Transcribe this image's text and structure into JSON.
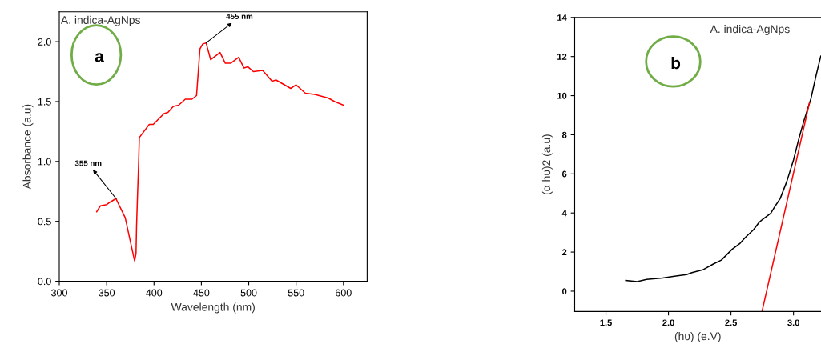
{
  "chart_data": [
    {
      "type": "line",
      "xlabel": "Wavelength (nm)",
      "ylabel": "Absorbance (a.u)",
      "xlim": [
        300,
        625
      ],
      "ylim": [
        0,
        2.25
      ],
      "xticks": [
        300,
        350,
        400,
        450,
        500,
        550,
        600
      ],
      "yticks": [
        {
          "value": 0,
          "label": "0.0"
        },
        0.5,
        {
          "value": 1,
          "label": "1.0"
        },
        1.5,
        {
          "value": 2,
          "label": "2.0"
        }
      ],
      "grid": false,
      "legend": false,
      "marker": "none",
      "line_style": "solid",
      "annotations": [
        "A. indica-AgNps",
        "a",
        {
          "text": "355 nm",
          "x": 360,
          "y": 0.69
        },
        {
          "text": "455 nm",
          "x": 455,
          "y": 1.99
        }
      ],
      "series": [
        {
          "color": "#ff0000",
          "x": [
            339.5,
            343.4,
            350,
            353.6,
            359.8,
            369.6,
            379.5,
            381,
            381.6,
            382.6,
            383.7,
            384.5,
            395,
            399.2,
            410.5,
            414.7,
            420.4,
            426,
            433,
            440,
            444.9,
            448.5,
            451.3,
            455,
            459.8,
            469.7,
            475.3,
            480.9,
            489.4,
            495,
            499.2,
            504.9,
            514.7,
            524.6,
            528.8,
            544.3,
            549.9,
            559.8,
            569.6,
            583.8,
            590.8,
            600
          ],
          "values": [
            0.58,
            0.63,
            0.64,
            0.66,
            0.69,
            0.53,
            0.17,
            0.23,
            0.47,
            0.72,
            0.97,
            1.2,
            1.31,
            1.31,
            1.4,
            1.41,
            1.46,
            1.47,
            1.52,
            1.52,
            1.55,
            1.94,
            1.98,
            1.99,
            1.85,
            1.91,
            1.82,
            1.82,
            1.87,
            1.78,
            1.79,
            1.75,
            1.76,
            1.67,
            1.68,
            1.61,
            1.64,
            1.57,
            1.56,
            1.53,
            1.5,
            1.47
          ]
        }
      ]
    },
    {
      "type": "line",
      "xlabel": "(hυ) (e.V)",
      "ylabel": "(α hυ)2 (a.u)",
      "xlim": [
        1.25,
        3.22
      ],
      "ylim": [
        -1.04,
        14
      ],
      "xticks": [
        1.5,
        {
          "value": 2,
          "label": "2.0"
        },
        2.5,
        {
          "value": 3,
          "label": "3.0"
        }
      ],
      "yticks": [
        0,
        2,
        4,
        6,
        8,
        10,
        12,
        14
      ],
      "grid": false,
      "legend": false,
      "marker": "none",
      "line_style": "solid",
      "annotations": [
        "A. indica-AgNps",
        "b"
      ],
      "series": [
        {
          "color": "#000000",
          "x": [
            1.658,
            1.75,
            1.825,
            1.953,
            2.06,
            2.145,
            2.188,
            2.274,
            2.359,
            2.423,
            2.509,
            2.573,
            2.615,
            2.68,
            2.722,
            2.754,
            2.818,
            2.85,
            2.893,
            2.947,
            3.0,
            3.043,
            3.085,
            3.139,
            3.182,
            3.218
          ],
          "values": [
            0.55,
            0.49,
            0.6,
            0.67,
            0.78,
            0.85,
            0.95,
            1.09,
            1.39,
            1.59,
            2.14,
            2.45,
            2.75,
            3.14,
            3.5,
            3.68,
            3.98,
            4.32,
            4.73,
            5.62,
            6.71,
            7.8,
            8.75,
            9.84,
            11.07,
            12.02
          ]
        },
        {
          "type": "line",
          "color": "#ff0000",
          "x": [
            2.748,
            3.128
          ],
          "values": [
            -1.04,
            9.64
          ]
        }
      ]
    }
  ]
}
